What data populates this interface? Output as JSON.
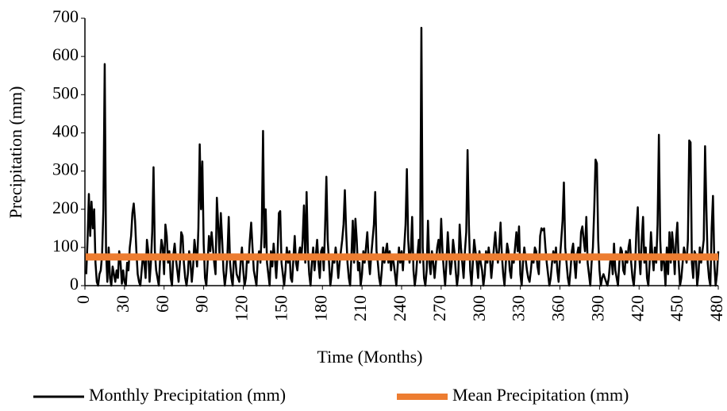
{
  "chart_data": {
    "type": "line",
    "x_label": "Time (Months)",
    "y_label": "Precipitation (mm)",
    "xlim": [
      0,
      480
    ],
    "xticks": [
      0,
      30,
      60,
      90,
      120,
      150,
      180,
      210,
      240,
      270,
      300,
      330,
      360,
      390,
      420,
      450,
      480
    ],
    "ylim": [
      0,
      700
    ],
    "yticks": [
      0,
      100,
      200,
      300,
      400,
      500,
      600,
      700
    ],
    "grid": false,
    "legend": "bottom",
    "series": [
      {
        "name": "Monthly Precipitation (mm)",
        "color": "#000000",
        "width": 2.5,
        "x": [
          1,
          2,
          3,
          4,
          5,
          6,
          7,
          8,
          9,
          10,
          11,
          12,
          13,
          14,
          15,
          16,
          17,
          18,
          19,
          20,
          21,
          22,
          23,
          24,
          25,
          26,
          27,
          28,
          29,
          30,
          31,
          32,
          33,
          34,
          35,
          36,
          37,
          38,
          39,
          40,
          41,
          42,
          43,
          44,
          45,
          46,
          47,
          48,
          49,
          50,
          51,
          52,
          53,
          54,
          55,
          56,
          57,
          58,
          59,
          60,
          61,
          62,
          63,
          64,
          65,
          66,
          67,
          68,
          69,
          70,
          71,
          72,
          73,
          74,
          75,
          76,
          77,
          78,
          79,
          80,
          81,
          82,
          83,
          84,
          85,
          86,
          87,
          88,
          89,
          90,
          91,
          92,
          93,
          94,
          95,
          96,
          97,
          98,
          99,
          100,
          101,
          102,
          103,
          104,
          105,
          106,
          107,
          108,
          109,
          110,
          111,
          112,
          113,
          114,
          115,
          116,
          117,
          118,
          119,
          120,
          121,
          122,
          123,
          124,
          125,
          126,
          127,
          128,
          129,
          130,
          131,
          132,
          133,
          134,
          135,
          136,
          137,
          138,
          139,
          140,
          141,
          142,
          143,
          144,
          145,
          146,
          147,
          148,
          149,
          150,
          151,
          152,
          153,
          154,
          155,
          156,
          157,
          158,
          159,
          160,
          161,
          162,
          163,
          164,
          165,
          166,
          167,
          168,
          169,
          170,
          171,
          172,
          173,
          174,
          175,
          176,
          177,
          178,
          179,
          180,
          181,
          182,
          183,
          184,
          185,
          186,
          187,
          188,
          189,
          190,
          191,
          192,
          193,
          194,
          195,
          196,
          197,
          198,
          199,
          200,
          201,
          202,
          203,
          204,
          205,
          206,
          207,
          208,
          209,
          210,
          211,
          212,
          213,
          214,
          215,
          216,
          217,
          218,
          219,
          220,
          221,
          222,
          223,
          224,
          225,
          226,
          227,
          228,
          229,
          230,
          231,
          232,
          233,
          234,
          235,
          236,
          237,
          238,
          239,
          240,
          241,
          242,
          243,
          244,
          245,
          246,
          247,
          248,
          249,
          250,
          251,
          252,
          253,
          254,
          255,
          256,
          257,
          258,
          259,
          260,
          261,
          262,
          263,
          264,
          265,
          266,
          267,
          268,
          269,
          270,
          271,
          272,
          273,
          274,
          275,
          276,
          277,
          278,
          279,
          280,
          281,
          282,
          283,
          284,
          285,
          286,
          287,
          288,
          289,
          290,
          291,
          292,
          293,
          294,
          295,
          296,
          297,
          298,
          299,
          300,
          301,
          302,
          303,
          304,
          305,
          306,
          307,
          308,
          309,
          310,
          311,
          312,
          313,
          314,
          315,
          316,
          317,
          318,
          319,
          320,
          321,
          322,
          323,
          324,
          325,
          326,
          327,
          328,
          329,
          330,
          331,
          332,
          333,
          334,
          335,
          336,
          337,
          338,
          339,
          340,
          341,
          342,
          343,
          344,
          345,
          346,
          347,
          348,
          349,
          350,
          351,
          352,
          353,
          354,
          355,
          356,
          357,
          358,
          359,
          360,
          361,
          362,
          363,
          364,
          365,
          366,
          367,
          368,
          369,
          370,
          371,
          372,
          373,
          374,
          375,
          376,
          377,
          378,
          379,
          380,
          381,
          382,
          383,
          384,
          385,
          386,
          387,
          388,
          389,
          390,
          391,
          392,
          393,
          394,
          395,
          396,
          397,
          398,
          399,
          400,
          401,
          402,
          403,
          404,
          405,
          406,
          407,
          408,
          409,
          410,
          411,
          412,
          413,
          414,
          415,
          416,
          417,
          418,
          419,
          420,
          421,
          422,
          423,
          424,
          425,
          426,
          427,
          428,
          429,
          430,
          431,
          432,
          433,
          434,
          435,
          436,
          437,
          438,
          439,
          440,
          441,
          442,
          443,
          444,
          445,
          446,
          447,
          448,
          449,
          450,
          451,
          452,
          453,
          454,
          455,
          456,
          457,
          458,
          459,
          460,
          461,
          462,
          463,
          464,
          465,
          466,
          467,
          468,
          469,
          470,
          471,
          472,
          473,
          474,
          475,
          476,
          477,
          478,
          479,
          480
        ],
        "values": [
          30,
          120,
          240,
          130,
          220,
          150,
          200,
          60,
          10,
          0,
          30,
          40,
          80,
          200,
          580,
          90,
          10,
          100,
          20,
          0,
          50,
          30,
          10,
          40,
          20,
          90,
          60,
          5,
          40,
          10,
          0,
          60,
          40,
          100,
          130,
          190,
          215,
          170,
          90,
          30,
          10,
          0,
          40,
          80,
          60,
          20,
          120,
          90,
          10,
          60,
          140,
          310,
          90,
          40,
          20,
          0,
          70,
          120,
          100,
          30,
          160,
          130,
          60,
          90,
          20,
          0,
          80,
          110,
          70,
          40,
          10,
          60,
          140,
          130,
          60,
          20,
          0,
          30,
          90,
          60,
          10,
          50,
          120,
          90,
          50,
          150,
          370,
          200,
          325,
          110,
          20,
          0,
          60,
          130,
          90,
          140,
          100,
          60,
          30,
          230,
          160,
          80,
          190,
          120,
          40,
          0,
          30,
          80,
          180,
          60,
          20,
          0,
          80,
          70,
          30,
          20,
          10,
          60,
          100,
          40,
          0,
          20,
          80,
          60,
          120,
          165,
          100,
          40,
          20,
          0,
          70,
          90,
          60,
          140,
          405,
          100,
          200,
          60,
          30,
          0,
          90,
          50,
          110,
          70,
          20,
          80,
          190,
          195,
          60,
          30,
          0,
          40,
          100,
          60,
          90,
          20,
          10,
          70,
          130,
          60,
          40,
          80,
          100,
          70,
          120,
          210,
          60,
          245,
          90,
          30,
          0,
          60,
          100,
          40,
          80,
          120,
          60,
          20,
          90,
          100,
          40,
          150,
          285,
          120,
          60,
          0,
          30,
          80,
          60,
          100,
          70,
          20,
          60,
          90,
          120,
          160,
          250,
          140,
          60,
          20,
          0,
          80,
          170,
          60,
          175,
          120,
          40,
          60,
          0,
          30,
          90,
          60,
          100,
          140,
          70,
          30,
          80,
          120,
          160,
          245,
          90,
          60,
          20,
          0,
          40,
          100,
          60,
          90,
          110,
          60,
          90,
          40,
          80,
          60,
          30,
          0,
          50,
          100,
          60,
          90,
          40,
          100,
          160,
          305,
          120,
          60,
          90,
          180,
          40,
          0,
          30,
          80,
          120,
          60,
          675,
          100,
          20,
          0,
          40,
          170,
          60,
          30,
          90,
          60,
          20,
          60,
          100,
          120,
          80,
          175,
          90,
          40,
          0,
          60,
          140,
          80,
          30,
          60,
          120,
          90,
          40,
          0,
          30,
          160,
          100,
          60,
          20,
          90,
          140,
          355,
          160,
          40,
          0,
          60,
          120,
          90,
          60,
          20,
          90,
          60,
          40,
          0,
          30,
          90,
          60,
          100,
          70,
          20,
          60,
          100,
          140,
          90,
          60,
          100,
          165,
          80,
          30,
          0,
          60,
          110,
          90,
          40,
          20,
          80,
          60,
          100,
          140,
          90,
          155,
          30,
          0,
          60,
          100,
          70,
          40,
          20,
          10,
          40,
          80,
          60,
          100,
          90,
          50,
          30,
          130,
          150,
          145,
          150,
          100,
          60,
          30,
          0,
          20,
          60,
          90,
          60,
          100,
          40,
          10,
          70,
          120,
          170,
          270,
          100,
          60,
          20,
          0,
          40,
          90,
          110,
          60,
          20,
          80,
          100,
          60,
          140,
          155,
          120,
          90,
          180,
          60,
          30,
          0,
          60,
          100,
          200,
          330,
          320,
          120,
          40,
          0,
          20,
          30,
          20,
          10,
          0,
          20,
          60,
          80,
          30,
          110,
          40,
          20,
          0,
          60,
          100,
          90,
          40,
          30,
          90,
          60,
          100,
          120,
          60,
          20,
          0,
          50,
          150,
          205,
          80,
          30,
          120,
          180,
          60,
          100,
          20,
          0,
          60,
          140,
          80,
          40,
          100,
          60,
          160,
          395,
          120,
          40,
          80,
          60,
          0,
          100,
          30,
          140,
          60,
          140,
          100,
          30,
          120,
          165,
          60,
          0,
          20,
          60,
          100,
          80,
          60,
          120,
          380,
          375,
          60,
          20,
          90,
          80,
          0,
          30,
          100,
          60,
          90,
          120,
          365,
          200,
          60,
          20,
          0,
          150,
          235,
          60,
          0,
          30,
          90
        ]
      },
      {
        "name": "Mean Precipitation (mm)",
        "color": "#ed7d31",
        "width": 9,
        "x": [
          0,
          480
        ],
        "values": [
          75,
          75
        ]
      }
    ]
  }
}
